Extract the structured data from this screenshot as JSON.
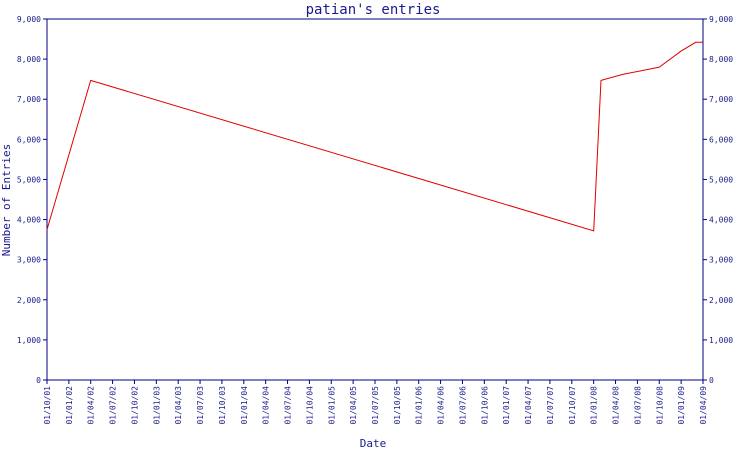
{
  "chart_data": {
    "type": "line",
    "title": "patian's entries",
    "xlabel": "Date",
    "ylabel": "Number of Entries",
    "ylim": [
      0,
      9000
    ],
    "grid": false,
    "colors": {
      "line": "#e00000",
      "axis": "#000080",
      "text": "#1a1a8c"
    },
    "y_ticks": [
      "0",
      "1,000",
      "2,000",
      "3,000",
      "4,000",
      "5,000",
      "6,000",
      "7,000",
      "8,000",
      "9,000"
    ],
    "y_tick_values": [
      0,
      1000,
      2000,
      3000,
      4000,
      5000,
      6000,
      7000,
      8000,
      9000
    ],
    "x_ticks": [
      "01/10/01",
      "01/01/02",
      "01/04/02",
      "01/07/02",
      "01/10/02",
      "01/01/03",
      "01/04/03",
      "01/07/03",
      "01/10/03",
      "01/01/04",
      "01/04/04",
      "01/07/04",
      "01/10/04",
      "01/01/05",
      "01/04/05",
      "01/07/05",
      "01/10/05",
      "01/01/06",
      "01/04/06",
      "01/07/06",
      "01/10/06",
      "01/01/07",
      "01/04/07",
      "01/07/07",
      "01/10/07",
      "01/01/08",
      "01/04/08",
      "01/07/08",
      "01/10/08",
      "01/01/09",
      "01/04/09"
    ],
    "series": [
      {
        "x": [
          "01/10/01",
          "01/04/02",
          "01/01/08",
          "01/02/08",
          "01/05/08",
          "01/10/08",
          "01/01/09",
          "01/03/09",
          "01/04/09"
        ],
        "values": [
          3750,
          7470,
          3720,
          7470,
          7620,
          7800,
          8200,
          8420,
          8420
        ]
      }
    ]
  }
}
